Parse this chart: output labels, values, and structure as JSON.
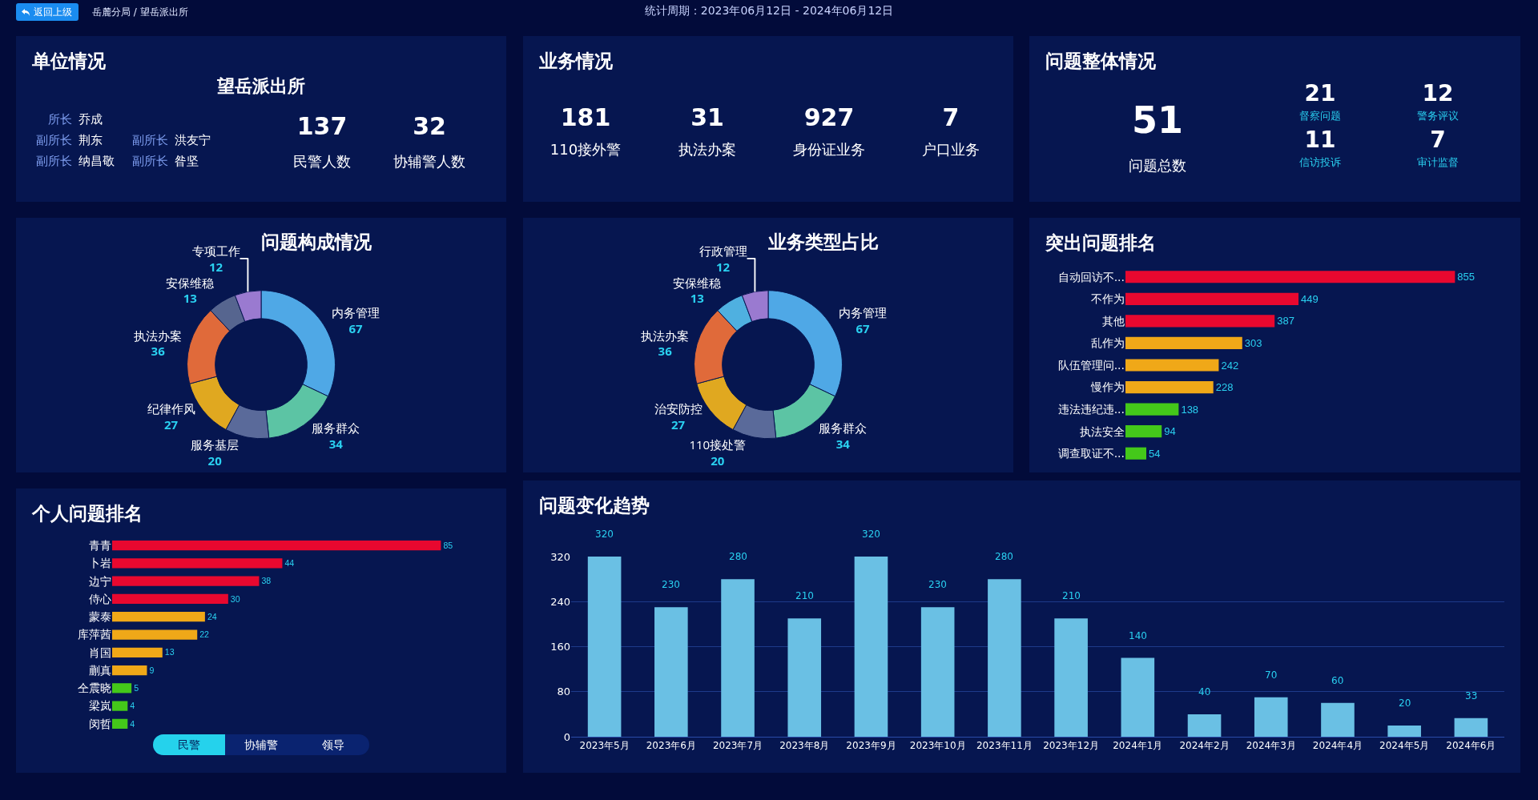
{
  "chart_data": [
    {
      "type": "other",
      "title": "单位情况",
      "categories": [
        "民警人数",
        "协辅警人数"
      ],
      "values": [
        137,
        32
      ],
      "data_labels": true,
      "annotations": [
        "返回上级",
        "岳麓分局 / 望岳派出所",
        "统计周期：2023年06月12日 - 2024年06月12日",
        "望岳派出所",
        "所长",
        "乔成",
        "副所长",
        "荆东",
        "副所长",
        "洪友宁",
        "副所长",
        "纳昌敬",
        "副所长",
        "昝坚"
      ]
    },
    {
      "type": "other",
      "title": "业务情况",
      "categories": [
        "110接外警",
        "执法办案",
        "身份证业务",
        "户口业务"
      ],
      "values": [
        181,
        31,
        927,
        7
      ],
      "data_labels": true
    },
    {
      "type": "other",
      "title": "问题整体情况",
      "categories": [
        "问题总数",
        "督察问题",
        "警务评议",
        "信访投诉",
        "审计监督"
      ],
      "values": [
        51,
        21,
        12,
        11,
        7
      ],
      "data_labels": true
    },
    {
      "type": "donut",
      "title": "问题构成情况",
      "categories": [
        "内务管理",
        "服务群众",
        "服务基层",
        "纪律作风",
        "执法办案",
        "安保维稳",
        "专项工作"
      ],
      "values": [
        67,
        34,
        20,
        27,
        36,
        13,
        12
      ],
      "colors": [
        "#4fa8e6",
        "#5cc4a4",
        "#5a6a9a",
        "#e0a820",
        "#e06a3a",
        "#56658f",
        "#9a7ad0"
      ],
      "data_labels": true
    },
    {
      "type": "donut",
      "title": "业务类型占比",
      "categories": [
        "内务管理",
        "服务群众",
        "110接处警",
        "治安防控",
        "执法办案",
        "安保维稳",
        "行政管理"
      ],
      "values": [
        67,
        34,
        20,
        27,
        36,
        13,
        12
      ],
      "colors": [
        "#4fa8e6",
        "#5cc4a4",
        "#5a6a9a",
        "#e0a820",
        "#e06a3a",
        "#4fb0e0",
        "#9a7ad0"
      ],
      "data_labels": true
    },
    {
      "type": "bar",
      "orientation": "horizontal",
      "title": "突出问题排名",
      "categories": [
        "自动回访不...",
        "不作为",
        "其他",
        "乱作为",
        "队伍管理问...",
        "慢作为",
        "违法违纪违...",
        "执法安全",
        "调查取证不..."
      ],
      "values": [
        855,
        449,
        387,
        303,
        242,
        228,
        138,
        94,
        54
      ],
      "colors": [
        "#e8082f",
        "#e8082f",
        "#e8082f",
        "#f0a818",
        "#f0a818",
        "#f0a818",
        "#44c81a",
        "#44c81a",
        "#44c81a"
      ],
      "data_labels": true
    },
    {
      "type": "bar",
      "orientation": "horizontal",
      "title": "个人问题排名",
      "categories": [
        "青青",
        "卜岩",
        "边宁",
        "侍心",
        "蒙泰",
        "库萍茜",
        "肖国",
        "蒯真",
        "仝震晓",
        "梁岚",
        "闵哲"
      ],
      "values": [
        85,
        44,
        38,
        30,
        24,
        22,
        13,
        9,
        5,
        4,
        4
      ],
      "colors": [
        "#e8082f",
        "#e8082f",
        "#e8082f",
        "#e8082f",
        "#f0a818",
        "#f0a818",
        "#f0a818",
        "#f0a818",
        "#44c81a",
        "#44c81a",
        "#44c81a"
      ],
      "data_labels": true,
      "annotations": [
        "民警",
        "协辅警",
        "领导"
      ]
    },
    {
      "type": "bar",
      "title": "问题变化趋势",
      "categories": [
        "2023年5月",
        "2023年6月",
        "2023年7月",
        "2023年8月",
        "2023年9月",
        "2023年10月",
        "2023年11月",
        "2023年12月",
        "2024年1月",
        "2024年2月",
        "2024年3月",
        "2024年4月",
        "2024年5月",
        "2024年6月"
      ],
      "values": [
        320,
        230,
        280,
        210,
        320,
        230,
        280,
        210,
        140,
        40,
        70,
        60,
        20,
        33
      ],
      "color": "#6ac0e4",
      "ylim": [
        0,
        320
      ],
      "yticks": [
        0,
        80,
        160,
        240,
        320
      ],
      "grid": "y",
      "data_labels": true
    }
  ]
}
